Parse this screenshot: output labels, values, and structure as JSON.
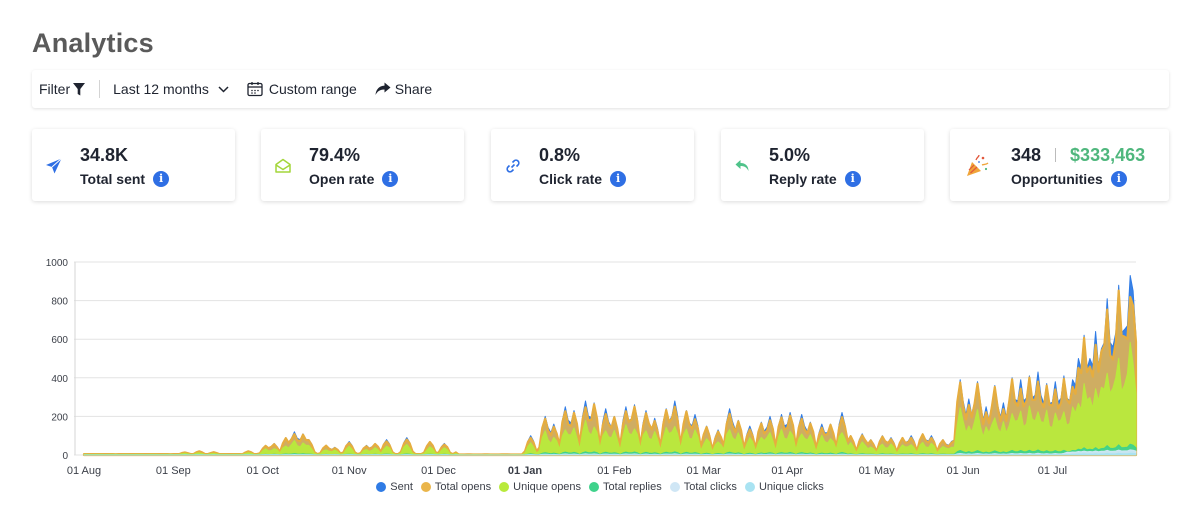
{
  "title": "Analytics",
  "toolbar": {
    "filter_label": "Filter",
    "range_label": "Last 12 months",
    "custom_label": "Custom range",
    "share_label": "Share"
  },
  "cards": [
    {
      "value": "34.8K",
      "label": "Total sent",
      "icon": "paper-plane-icon"
    },
    {
      "value": "79.4%",
      "label": "Open rate",
      "icon": "open-envelope-icon"
    },
    {
      "value": "0.8%",
      "label": "Click rate",
      "icon": "link-icon"
    },
    {
      "value": "5.0%",
      "label": "Reply rate",
      "icon": "reply-icon"
    },
    {
      "value": "348",
      "money": "$333,463",
      "label": "Opportunities",
      "icon": "party-popper-icon"
    }
  ],
  "colors": {
    "sent": "#2f7be5",
    "total_opens": "#eab54a",
    "unique_opens": "#b8ea3c",
    "total_replies": "#3fd28b",
    "total_clicks": "#cfe6f5",
    "unique_clicks": "#a9e3f2",
    "info": "#2f6fe4",
    "money": "#4fb77d"
  },
  "chart_data": {
    "type": "area",
    "x_start": "2023-08-01",
    "x_end": "2024-07-31",
    "x_ticks": [
      "01 Aug",
      "01 Sep",
      "01 Oct",
      "01 Nov",
      "01 Dec",
      "01 Jan",
      "01 Feb",
      "01 Mar",
      "01 Apr",
      "01 May",
      "01 Jun",
      "01 Jul"
    ],
    "bold_tick": "01 Jan",
    "y_ticks": [
      "1000",
      "800",
      "600",
      "400",
      "200",
      "0"
    ],
    "ylim": [
      0,
      1000
    ],
    "legend": [
      "Sent",
      "Total opens",
      "Unique opens",
      "Total replies",
      "Total clicks",
      "Unique clicks"
    ],
    "series_ratio": {
      "total_opens": 0.93,
      "unique_opens": 0.58,
      "total_replies": 0.06,
      "total_clicks": 0.02,
      "unique_clicks": 0.01
    },
    "sent_daily_baseline": 5,
    "sent_bursts": [
      {
        "d": 35,
        "v": 15
      },
      {
        "d": 40,
        "v": 20
      },
      {
        "d": 45,
        "v": 15
      },
      {
        "d": 57,
        "v": 20
      },
      {
        "d": 63,
        "v": 50
      },
      {
        "d": 66,
        "v": 60
      },
      {
        "d": 70,
        "v": 90
      },
      {
        "d": 73,
        "v": 120
      },
      {
        "d": 76,
        "v": 110
      },
      {
        "d": 78,
        "v": 80
      },
      {
        "d": 84,
        "v": 50
      },
      {
        "d": 87,
        "v": 40
      },
      {
        "d": 92,
        "v": 70
      },
      {
        "d": 98,
        "v": 50
      },
      {
        "d": 101,
        "v": 60
      },
      {
        "d": 105,
        "v": 80
      },
      {
        "d": 112,
        "v": 90
      },
      {
        "d": 120,
        "v": 70
      },
      {
        "d": 125,
        "v": 60
      },
      {
        "d": 130,
        "v": 20
      },
      {
        "d": 155,
        "v": 100
      },
      {
        "d": 160,
        "v": 200
      },
      {
        "d": 163,
        "v": 160
      },
      {
        "d": 167,
        "v": 250
      },
      {
        "d": 170,
        "v": 230
      },
      {
        "d": 174,
        "v": 280
      },
      {
        "d": 177,
        "v": 270
      },
      {
        "d": 181,
        "v": 240
      },
      {
        "d": 184,
        "v": 200
      },
      {
        "d": 188,
        "v": 250
      },
      {
        "d": 191,
        "v": 260
      },
      {
        "d": 195,
        "v": 230
      },
      {
        "d": 198,
        "v": 190
      },
      {
        "d": 202,
        "v": 240
      },
      {
        "d": 205,
        "v": 280
      },
      {
        "d": 209,
        "v": 230
      },
      {
        "d": 212,
        "v": 210
      },
      {
        "d": 216,
        "v": 150
      },
      {
        "d": 220,
        "v": 130
      },
      {
        "d": 224,
        "v": 240
      },
      {
        "d": 227,
        "v": 180
      },
      {
        "d": 231,
        "v": 150
      },
      {
        "d": 235,
        "v": 170
      },
      {
        "d": 238,
        "v": 200
      },
      {
        "d": 242,
        "v": 210
      },
      {
        "d": 245,
        "v": 220
      },
      {
        "d": 249,
        "v": 210
      },
      {
        "d": 252,
        "v": 170
      },
      {
        "d": 256,
        "v": 160
      },
      {
        "d": 259,
        "v": 160
      },
      {
        "d": 263,
        "v": 220
      },
      {
        "d": 266,
        "v": 100
      },
      {
        "d": 270,
        "v": 110
      },
      {
        "d": 273,
        "v": 80
      },
      {
        "d": 277,
        "v": 100
      },
      {
        "d": 280,
        "v": 90
      },
      {
        "d": 284,
        "v": 90
      },
      {
        "d": 287,
        "v": 100
      },
      {
        "d": 291,
        "v": 110
      },
      {
        "d": 294,
        "v": 100
      },
      {
        "d": 298,
        "v": 80
      },
      {
        "d": 301,
        "v": 70
      },
      {
        "d": 304,
        "v": 390
      },
      {
        "d": 307,
        "v": 290
      },
      {
        "d": 310,
        "v": 380
      },
      {
        "d": 313,
        "v": 250
      },
      {
        "d": 316,
        "v": 360
      },
      {
        "d": 319,
        "v": 270
      },
      {
        "d": 322,
        "v": 400
      },
      {
        "d": 325,
        "v": 390
      },
      {
        "d": 328,
        "v": 410
      },
      {
        "d": 331,
        "v": 430
      },
      {
        "d": 334,
        "v": 370
      },
      {
        "d": 337,
        "v": 380
      },
      {
        "d": 340,
        "v": 410
      },
      {
        "d": 343,
        "v": 390
      },
      {
        "d": 345,
        "v": 500
      },
      {
        "d": 347,
        "v": 620
      },
      {
        "d": 349,
        "v": 500
      },
      {
        "d": 351,
        "v": 640
      },
      {
        "d": 353,
        "v": 550
      },
      {
        "d": 355,
        "v": 810
      },
      {
        "d": 357,
        "v": 560
      },
      {
        "d": 359,
        "v": 880
      },
      {
        "d": 361,
        "v": 650
      },
      {
        "d": 363,
        "v": 930
      },
      {
        "d": 364,
        "v": 850
      }
    ]
  }
}
